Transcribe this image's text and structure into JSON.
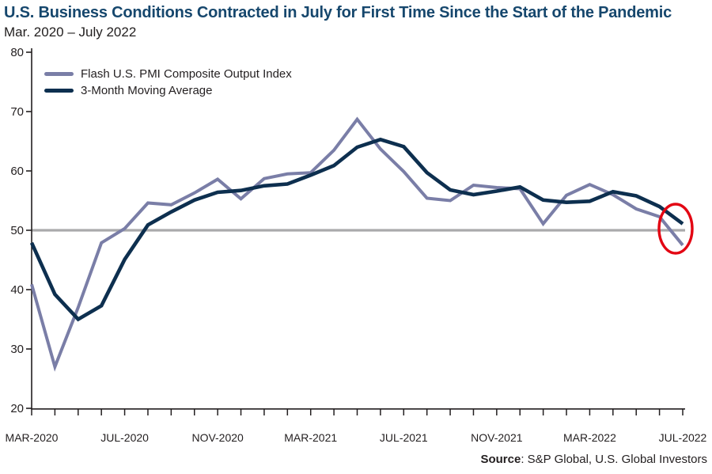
{
  "header": {
    "title": "U.S. Business Conditions Contracted in July for First Time Since the Start of the Pandemic",
    "subtitle": "Mar. 2020 – July 2022"
  },
  "footer": {
    "source_label": "Source",
    "source_text": ": S&P Global, U.S. Global Investors"
  },
  "colors": {
    "title": "#16476d",
    "axis": "#231f20",
    "flash_line": "#7a7ea7",
    "moving_average_line": "#0d2f4f",
    "reference_line": "#aaaaac",
    "annotation": "#e30613"
  },
  "chart_data": {
    "type": "line",
    "title": "U.S. Business Conditions Contracted in July for First Time Since the Start of the Pandemic",
    "subtitle": "Mar. 2020 – July 2022",
    "xlabel": "",
    "ylabel": "",
    "ylim": [
      20,
      80
    ],
    "y_ticks": [
      20,
      30,
      40,
      50,
      60,
      70,
      80
    ],
    "grid": "off",
    "legend_position": "top-left",
    "x": [
      "Mar-2020",
      "Apr-2020",
      "May-2020",
      "Jun-2020",
      "Jul-2020",
      "Aug-2020",
      "Sep-2020",
      "Oct-2020",
      "Nov-2020",
      "Dec-2020",
      "Jan-2021",
      "Feb-2021",
      "Mar-2021",
      "Apr-2021",
      "May-2021",
      "Jun-2021",
      "Jul-2021",
      "Aug-2021",
      "Sep-2021",
      "Oct-2021",
      "Nov-2021",
      "Dec-2021",
      "Jan-2022",
      "Feb-2022",
      "Mar-2022",
      "Apr-2022",
      "May-2022",
      "Jun-2022",
      "Jul-2022"
    ],
    "x_tick_indices": [
      0,
      4,
      8,
      12,
      16,
      20,
      24,
      28
    ],
    "x_tick_labels": [
      "MAR-2020",
      "JUL-2020",
      "NOV-2020",
      "MAR-2021",
      "JUL-2021",
      "NOV-2021",
      "MAR-2022",
      "JUL-2022"
    ],
    "reference_line": {
      "value": 50,
      "color": "#aaaaac"
    },
    "series": [
      {
        "name": "Flash U.S. PMI Composite Output Index",
        "color": "#7a7ea7",
        "width": 4,
        "values": [
          40.9,
          27.0,
          37.0,
          47.9,
          50.3,
          54.6,
          54.3,
          56.3,
          58.6,
          55.3,
          58.7,
          59.5,
          59.7,
          63.5,
          68.7,
          63.7,
          59.9,
          55.4,
          55.0,
          57.6,
          57.2,
          57.0,
          51.1,
          55.9,
          57.7,
          56.0,
          53.6,
          52.3,
          47.5
        ]
      },
      {
        "name": "3-Month Moving Average",
        "color": "#0d2f4f",
        "width": 4.6,
        "values": [
          47.9,
          39.2,
          35.0,
          37.3,
          45.1,
          50.9,
          53.1,
          55.1,
          56.4,
          56.7,
          57.5,
          57.8,
          59.3,
          60.9,
          64.0,
          65.3,
          64.1,
          59.7,
          56.8,
          56.0,
          56.6,
          57.3,
          55.1,
          54.7,
          54.9,
          56.5,
          55.8,
          54.0,
          51.1
        ]
      }
    ],
    "annotation_ellipse": {
      "at_x": "Jul-2022",
      "color": "#e30613",
      "highlights": "final data points dropping to 50 line"
    }
  }
}
